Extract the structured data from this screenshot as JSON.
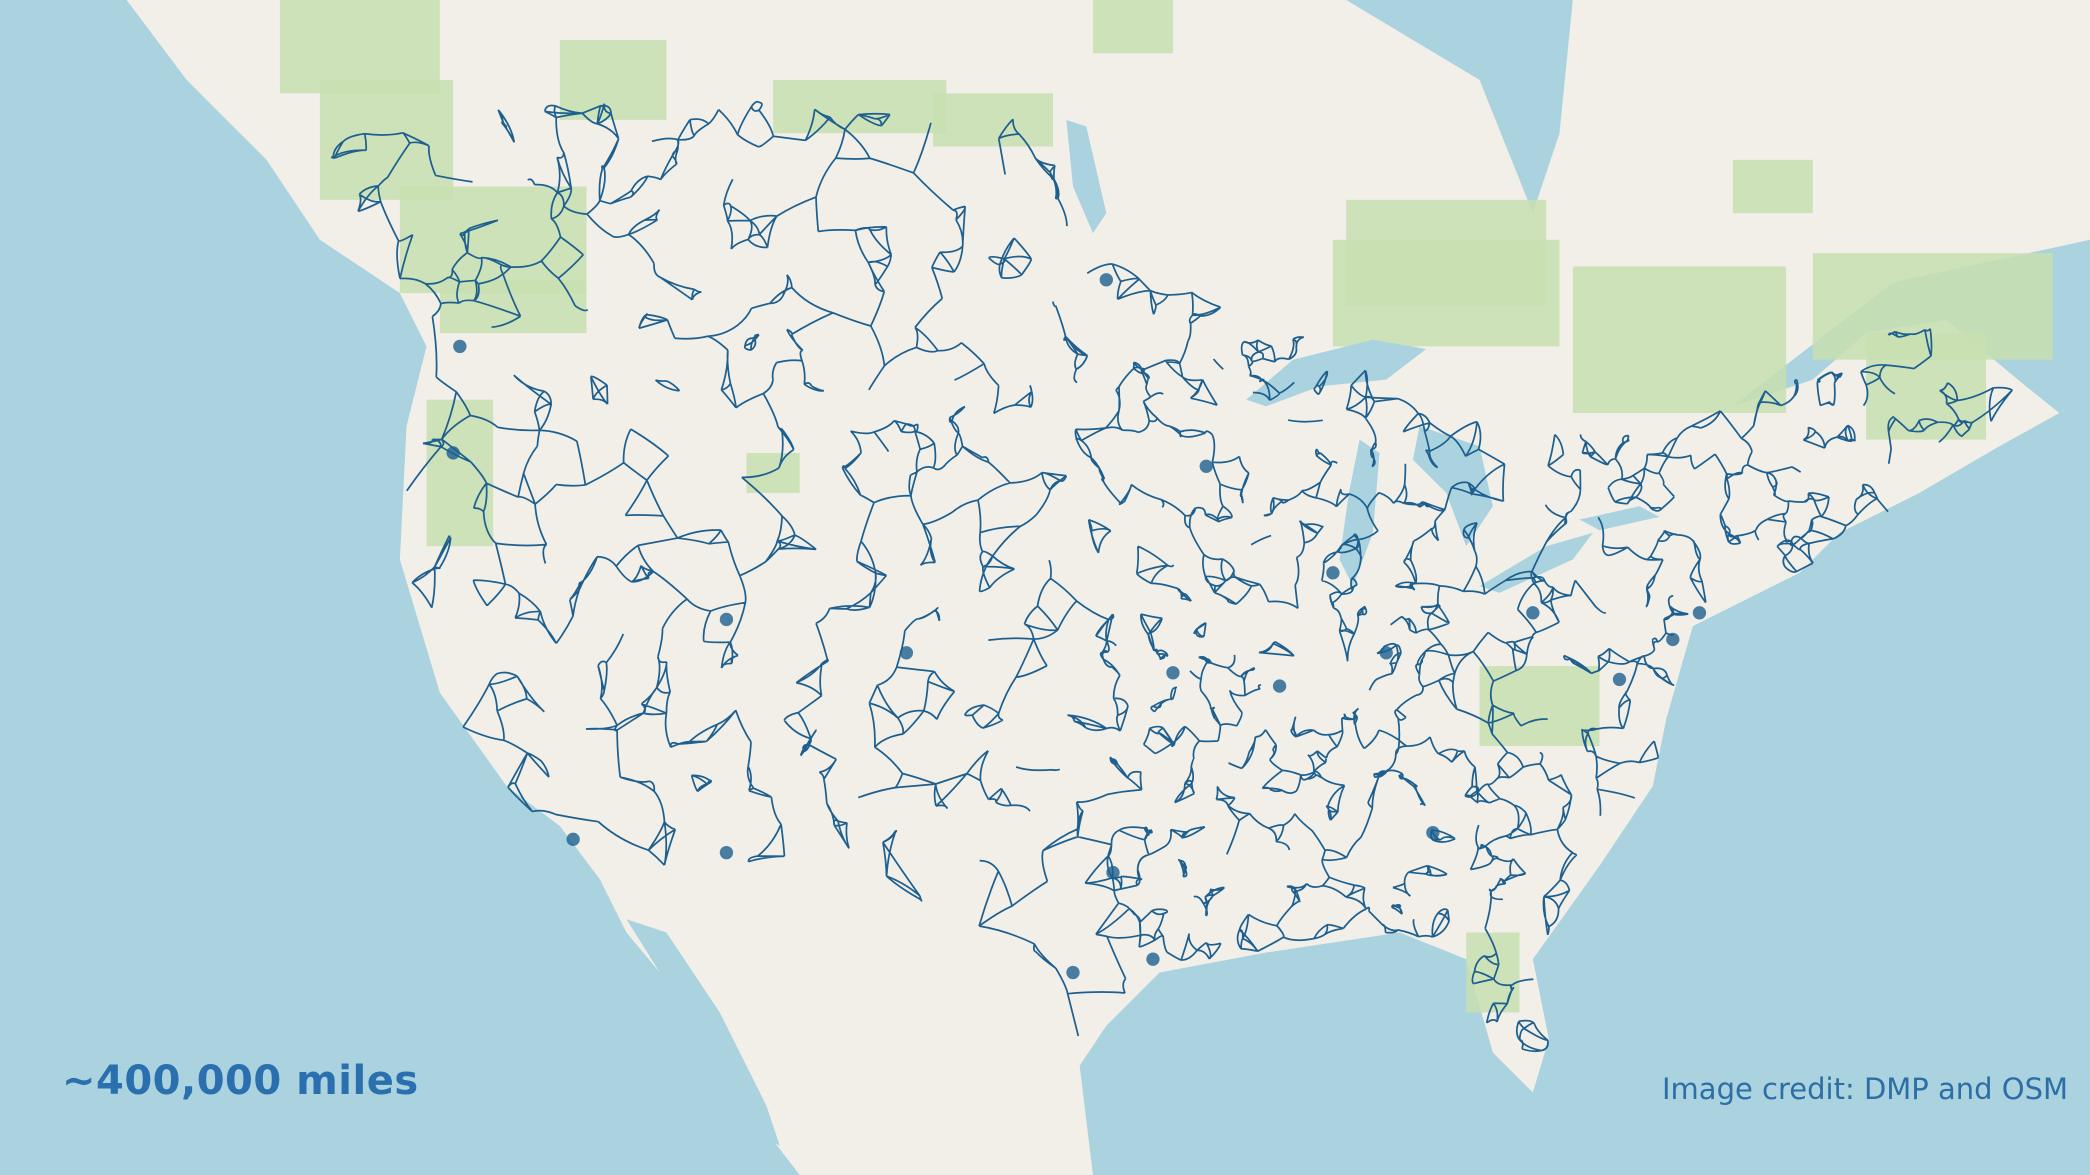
{
  "map": {
    "subject": "road network of the United States over an OpenStreetMap basemap",
    "colors": {
      "water": "#aad3df",
      "land": "#f2efe9",
      "forest": "#c8dfb0",
      "roads": "#1d5f8e"
    }
  },
  "annotations": {
    "total_length": "~400,000 miles",
    "credit": "Image credit: DMP and OSM"
  }
}
